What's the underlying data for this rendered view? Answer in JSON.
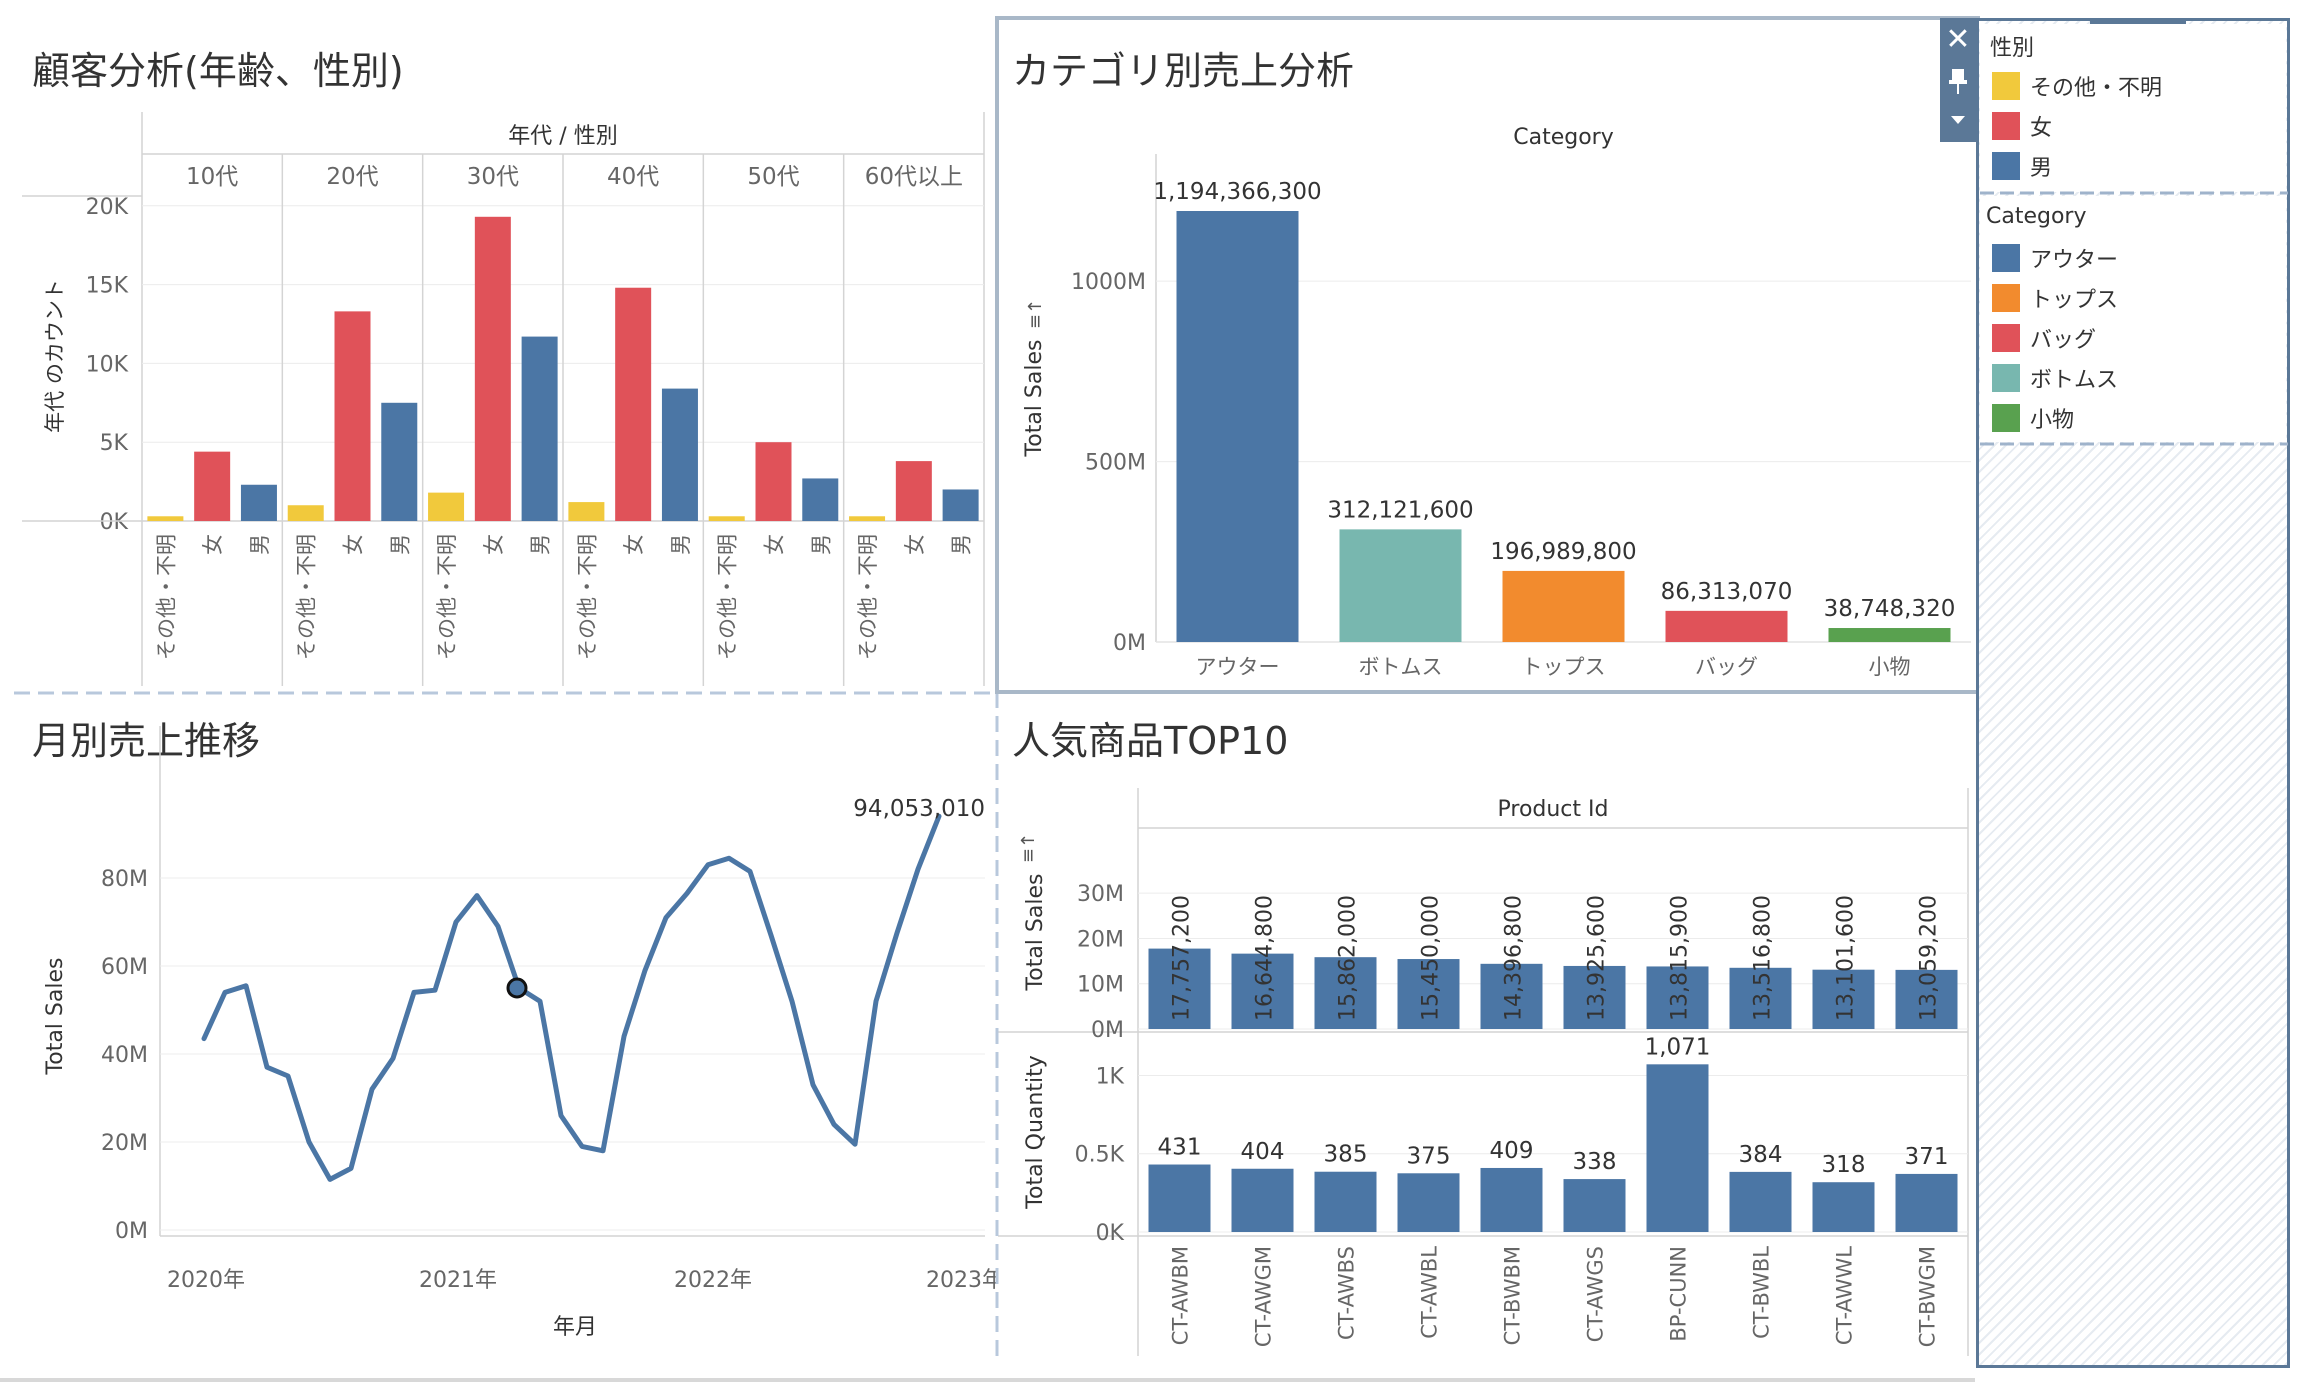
{
  "titles": {
    "customer": "顧客分析(年齢、性別)",
    "category": "カテゴリ別売上分析",
    "monthly": "月別売上推移",
    "top10": "人気商品TOP10"
  },
  "colors": {
    "other": "#F1C93C",
    "female": "#E05259",
    "male": "#4B76A5",
    "outer": "#4B76A5",
    "tops": "#F28B2E",
    "bag": "#E05259",
    "bottoms": "#78B7AF",
    "small": "#59A14F"
  },
  "legend_gender": {
    "title": "性別",
    "items": [
      {
        "label": "その他・不明",
        "color": "#F1C93C"
      },
      {
        "label": "女",
        "color": "#E05259"
      },
      {
        "label": "男",
        "color": "#4B76A5"
      }
    ]
  },
  "legend_category": {
    "title": "Category",
    "items": [
      {
        "label": "アウター",
        "color": "#4B76A5"
      },
      {
        "label": "トップス",
        "color": "#F28B2E"
      },
      {
        "label": "バッグ",
        "color": "#E05259"
      },
      {
        "label": "ボトムス",
        "color": "#78B7AF"
      },
      {
        "label": "小物",
        "color": "#59A14F"
      }
    ]
  },
  "chart_data": [
    {
      "type": "bar",
      "title": "顧客分析(年齢、性別)",
      "header": "年代 / 性別",
      "ylabel": "年代 のカウント",
      "ylim": [
        0,
        21000
      ],
      "yticks": [
        0,
        5000,
        10000,
        15000,
        20000
      ],
      "ytick_labels": [
        "0K",
        "5K",
        "10K",
        "15K",
        "20K"
      ],
      "groups": [
        "10代",
        "20代",
        "30代",
        "40代",
        "50代",
        "60代以上"
      ],
      "categories": [
        "その他・不明",
        "女",
        "男"
      ],
      "series": [
        {
          "values": [
            300,
            4400,
            2300
          ]
        },
        {
          "values": [
            1000,
            13300,
            7500
          ]
        },
        {
          "values": [
            1800,
            19300,
            11700
          ]
        },
        {
          "values": [
            1200,
            14800,
            8400
          ]
        },
        {
          "values": [
            300,
            5000,
            2700
          ]
        },
        {
          "values": [
            300,
            3800,
            2000
          ]
        }
      ]
    },
    {
      "type": "bar",
      "title": "カテゴリ別売上分析",
      "header": "Category",
      "ylabel": "Total Sales",
      "ylim": [
        0,
        1300000000
      ],
      "yticks": [
        0,
        500000000,
        1000000000
      ],
      "ytick_labels": [
        "0M",
        "500M",
        "1000M"
      ],
      "categories": [
        "アウター",
        "ボトムス",
        "トップス",
        "バッグ",
        "小物"
      ],
      "values": [
        1194366300,
        312121600,
        196989800,
        86313070,
        38748320
      ],
      "data_labels": [
        "1,194,366,300",
        "312,121,600",
        "196,989,800",
        "86,313,070",
        "38,748,320"
      ]
    },
    {
      "type": "line",
      "title": "月別売上推移",
      "xlabel": "年月",
      "ylabel": "Total Sales",
      "ylim": [
        0,
        100000000
      ],
      "yticks": [
        0,
        20000000,
        40000000,
        60000000,
        80000000
      ],
      "ytick_labels": [
        "0M",
        "20M",
        "40M",
        "60M",
        "80M"
      ],
      "xtick_labels": [
        "2020年",
        "2021年",
        "2022年",
        "2023年"
      ],
      "x": [
        "2020-01",
        "2020-02",
        "2020-03",
        "2020-04",
        "2020-05",
        "2020-06",
        "2020-07",
        "2020-08",
        "2020-09",
        "2020-10",
        "2020-11",
        "2020-12",
        "2021-01",
        "2021-02",
        "2021-03",
        "2021-04",
        "2021-05",
        "2021-06",
        "2021-07",
        "2021-08",
        "2021-09",
        "2021-10",
        "2021-11",
        "2021-12",
        "2022-01",
        "2022-02",
        "2022-03",
        "2022-04",
        "2022-05",
        "2022-06",
        "2022-07",
        "2022-08",
        "2022-09",
        "2022-10",
        "2022-11",
        "2022-12",
        "2023-01"
      ],
      "values": [
        43500000,
        54000000,
        55500000,
        37000000,
        35000000,
        20000000,
        11500000,
        14000000,
        32000000,
        39000000,
        54000000,
        54500000,
        70000000,
        76000000,
        69000000,
        55000000,
        52000000,
        26000000,
        19000000,
        18000000,
        44000000,
        59000000,
        71000000,
        76500000,
        83000000,
        84500000,
        81500000,
        67000000,
        52000000,
        33000000,
        24000000,
        19500000,
        52000000,
        67500000,
        82000000,
        94053010,
        94053010
      ],
      "highlight_index": 15,
      "end_label": "94,053,010"
    },
    {
      "type": "bar",
      "title": "人気商品TOP10",
      "header": "Product Id",
      "categories": [
        "CT-AWBM",
        "CT-AWGM",
        "CT-AWBS",
        "CT-AWBL",
        "CT-BWBM",
        "CT-AWGS",
        "BP-CUNN",
        "CT-BWBL",
        "CT-AWWL",
        "CT-BWGM"
      ],
      "series": [
        {
          "name": "Total Sales",
          "ylim": [
            0,
            36000000
          ],
          "yticks": [
            0,
            10000000,
            20000000,
            30000000
          ],
          "ytick_labels": [
            "0M",
            "10M",
            "20M",
            "30M"
          ],
          "values": [
            17757200,
            16644800,
            15862000,
            15450000,
            14396800,
            13925600,
            13815900,
            13516800,
            13101600,
            13059200
          ],
          "data_labels": [
            "17,757,200",
            "16,644,800",
            "15,862,000",
            "15,450,000",
            "14,396,800",
            "13,925,600",
            "13,815,900",
            "13,516,800",
            "13,101,600",
            "13,059,200"
          ]
        },
        {
          "name": "Total Quantity",
          "ylim": [
            0,
            1220
          ],
          "yticks": [
            0,
            500,
            1000
          ],
          "ytick_labels": [
            "0K",
            "0.5K",
            "1K"
          ],
          "values": [
            431,
            404,
            385,
            375,
            409,
            338,
            1071,
            384,
            318,
            371
          ],
          "data_labels": [
            "431",
            "404",
            "385",
            "375",
            "409",
            "338",
            "1,071",
            "384",
            "318",
            "371"
          ]
        }
      ]
    }
  ]
}
